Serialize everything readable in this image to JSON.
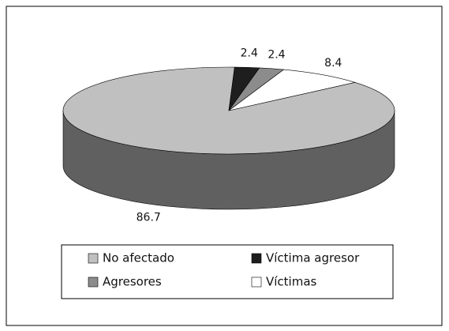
{
  "chart_data": {
    "type": "pie3d",
    "categories": [
      "No afectado",
      "Víctima agresor",
      "Agresores",
      "Víctimas"
    ],
    "values": [
      86.7,
      2.4,
      2.4,
      8.4
    ],
    "colors": [
      "#c0c0c0",
      "#1e1e1e",
      "#8c8c8c",
      "#ffffff"
    ],
    "legend": "bottom"
  }
}
